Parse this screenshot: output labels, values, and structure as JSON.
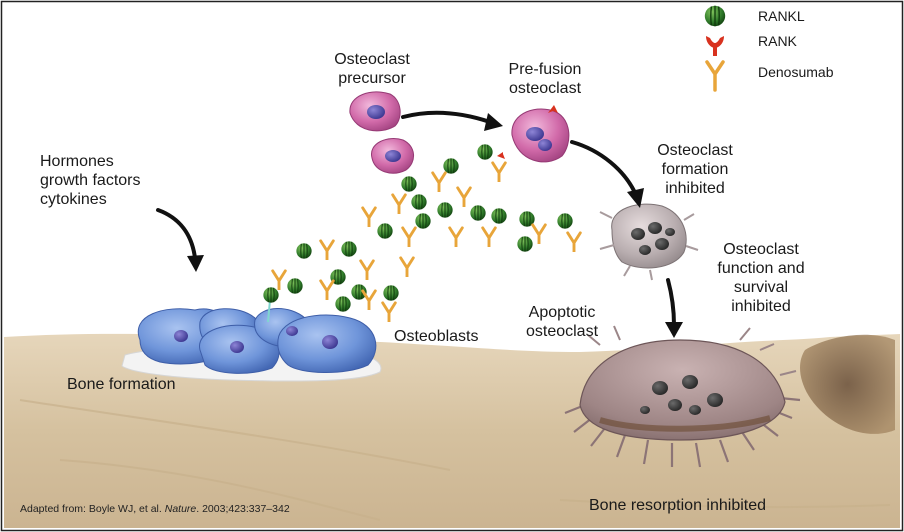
{
  "legend": {
    "rankl": "RANKL",
    "rank": "RANK",
    "denosumab": "Denosumab"
  },
  "labels": {
    "hormones": "Hormones\ngrowth factors\ncytokines",
    "osteoclast_precursor": "Osteoclast\nprecursor",
    "pre_fusion": "Pre-fusion\nosteoclast",
    "formation_inhibited": "Osteoclast\nformation\ninhibited",
    "function_inhibited": "Osteoclast\nfunction and\nsurvival\ninhibited",
    "osteoblasts": "Osteoblasts",
    "apoptotic": "Apoptotic\nosteoclast",
    "bone_formation": "Bone formation",
    "bone_resorption": "Bone resorption inhibited"
  },
  "citation": {
    "prefix": "Adapted from: Boyle WJ, et al. ",
    "journal": "Nature",
    "suffix": ". 2003;423:337–342"
  },
  "colors": {
    "bone": "#d9c6a8",
    "osteoblast": "#6c93d8",
    "precursor": "#c9579a",
    "inhibited_cell": "#b9adb0",
    "rankl": "#2f7a2a",
    "rank": "#d8321f",
    "denosumab": "#e8a53a"
  }
}
